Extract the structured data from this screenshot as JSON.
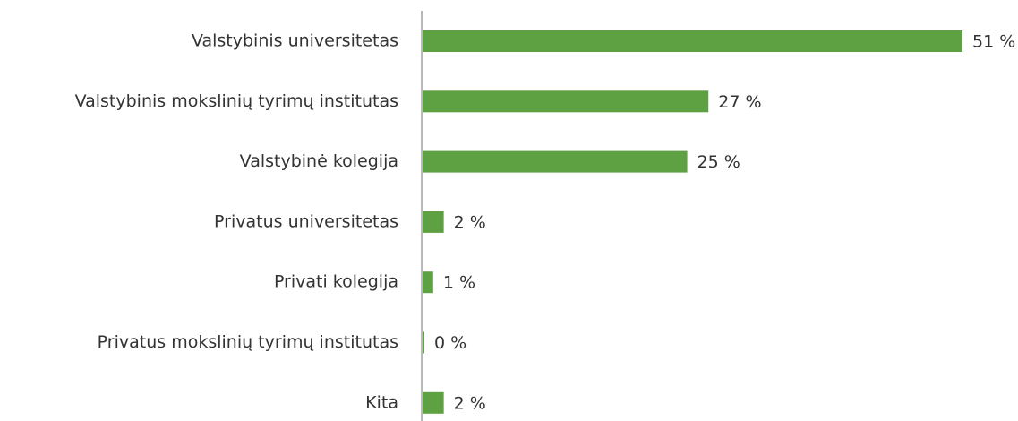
{
  "chart_data": {
    "type": "bar",
    "orientation": "horizontal",
    "categories": [
      "Valstybinis universitetas",
      "Valstybinis mokslinių tyrimų institutas",
      "Valstybinė kolegija",
      "Privatus universitetas",
      "Privati kolegija",
      "Privatus mokslinių tyrimų institutas",
      "Kita"
    ],
    "values": [
      51,
      27,
      25,
      2,
      1,
      0,
      2
    ],
    "value_labels": [
      "51 %",
      "27 %",
      "25 %",
      "2 %",
      "1 %",
      "0 %",
      "2 %"
    ],
    "color": "#5ea142"
  }
}
